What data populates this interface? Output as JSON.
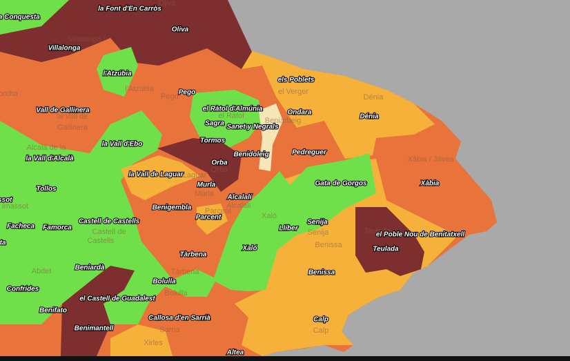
{
  "labels": [
    "tellonet de la Conquesta",
    "la Font d'En Carròs",
    "Oliva",
    "Villalonga",
    "l'Atzúbia",
    "Pego",
    "els Poblets",
    "Vall de Gallinera",
    "el Ràtol d'Almúnia",
    "Ondara",
    "Dénia",
    "Sagra",
    "Sanet y Negrals",
    "Tormos",
    "la Vall d'Ebo",
    "Benidoleig",
    "Pedreguer",
    "la Vall d'Alcalà",
    "Orba",
    "Xàbia",
    "la Vall de Laguar",
    "Gata de Gorgos",
    "Murla",
    "Tollos",
    "massot",
    "Alcalalí",
    "Benigembla",
    "Parcent",
    "Senija",
    "Castell de Castells",
    "Facheca",
    "Famorca",
    "Llíber",
    "el Poble Nou de Benitatxell",
    "leta",
    "Xaló",
    "Teulada",
    "Tàrbena",
    "Beniardà",
    "Benissa",
    "Bolulla",
    "Confrides",
    "el Castell de Guadalest",
    "Benifato",
    "Callosa d'en Sarrià",
    "Calp",
    "Benimantell",
    "Altea"
  ],
  "basemap_labels": [
    "Oliva",
    "Vilallonga /",
    "l'Atzúbia",
    "Pego",
    "el Verger",
    "Dénia",
    "la Vall de",
    "Gallinera",
    "Beniarbeig",
    "el Ràfol",
    "Xàbia / Jávea",
    "Alcalà de la",
    "Orba",
    "Laguar",
    "Murla",
    "Parcent",
    "Alcalalí",
    "Xaló",
    "Teulada",
    "Senija",
    "Benissa",
    "Castell de",
    "Castells",
    "Abdet",
    "Tàrbena",
    "Bolulla",
    "Sarria",
    "Xirles",
    "Calp",
    "orcha",
    "imassot"
  ]
}
